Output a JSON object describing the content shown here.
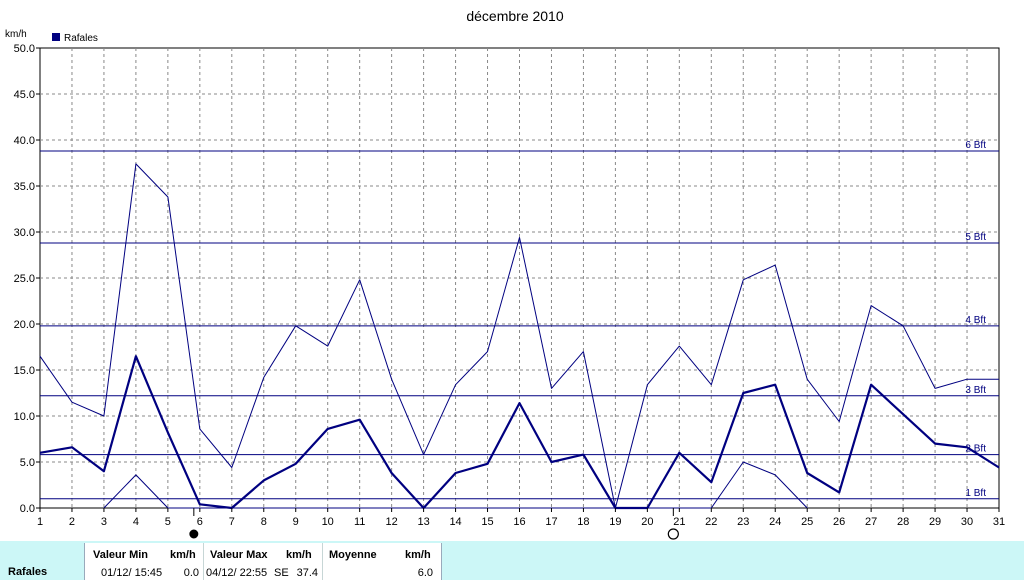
{
  "chart_data": {
    "type": "line",
    "title": "décembre 2010",
    "ylabel": "km/h",
    "xlabel": "",
    "xlim": [
      1,
      31
    ],
    "ylim": [
      0,
      50
    ],
    "y_ticks": [
      "0.0",
      "5.0",
      "10.0",
      "15.0",
      "20.0",
      "25.0",
      "30.0",
      "35.0",
      "40.0",
      "45.0",
      "50.0"
    ],
    "x_ticks": [
      "1",
      "2",
      "3",
      "4",
      "5",
      "6",
      "7",
      "8",
      "9",
      "10",
      "11",
      "12",
      "13",
      "14",
      "15",
      "16",
      "17",
      "18",
      "19",
      "20",
      "21",
      "22",
      "23",
      "24",
      "25",
      "26",
      "27",
      "28",
      "29",
      "30",
      "31"
    ],
    "grid": true,
    "legend": {
      "position": "top-left",
      "entries": [
        "Rafales"
      ]
    },
    "colors": {
      "series": "#000080",
      "grid": "#888888",
      "stats_bg": "#ccf7f7"
    },
    "series": [
      {
        "name": "Rafales",
        "role": "average",
        "x": [
          1,
          2,
          3,
          4,
          5,
          6,
          7,
          8,
          9,
          10,
          11,
          12,
          13,
          14,
          15,
          16,
          17,
          18,
          19,
          20,
          21,
          22,
          23,
          24,
          25,
          26,
          27,
          28,
          29,
          30,
          31
        ],
        "values": [
          6.0,
          6.6,
          4.0,
          16.5,
          8.2,
          0.4,
          0.0,
          3.0,
          4.8,
          8.6,
          9.6,
          3.8,
          0.0,
          3.8,
          4.8,
          11.4,
          5.0,
          5.8,
          0.0,
          0.0,
          6.0,
          2.8,
          12.5,
          13.4,
          3.8,
          1.7,
          13.4,
          10.2,
          7.0,
          6.6,
          4.4
        ]
      },
      {
        "role": "max",
        "x": [
          1,
          2,
          3,
          4,
          5,
          6,
          7,
          8,
          9,
          10,
          11,
          12,
          13,
          14,
          15,
          16,
          17,
          18,
          19,
          20,
          21,
          22,
          23,
          24,
          25,
          26,
          27,
          28,
          29,
          30,
          31
        ],
        "values": [
          16.5,
          11.5,
          10.0,
          37.4,
          33.8,
          8.6,
          4.4,
          14.2,
          19.8,
          17.6,
          24.8,
          14.0,
          5.8,
          13.4,
          17.0,
          29.4,
          13.0,
          17.0,
          0.0,
          13.4,
          17.6,
          13.4,
          24.8,
          26.4,
          14.0,
          9.4,
          22.0,
          19.8,
          13.0,
          14.0,
          14.0
        ]
      },
      {
        "role": "min",
        "x": [
          3,
          4,
          5,
          22,
          23,
          24,
          25
        ],
        "values": [
          0.0,
          3.6,
          0.0,
          0.0,
          5.0,
          3.6,
          0.0
        ]
      }
    ],
    "reference_lines": [
      {
        "label": "1 Bft",
        "value": 1.0
      },
      {
        "label": "2 Bft",
        "value": 5.8
      },
      {
        "label": "3 Bft",
        "value": 12.2
      },
      {
        "label": "4 Bft",
        "value": 19.8
      },
      {
        "label": "5 Bft",
        "value": 28.8
      },
      {
        "label": "6 Bft",
        "value": 38.8
      }
    ],
    "moon_phases": [
      {
        "day": 6,
        "phase": "new-moon"
      },
      {
        "day": 21,
        "phase": "full-moon"
      }
    ]
  },
  "stats": {
    "series_label": "Rafales",
    "min_header": "Valeur Min",
    "min_unit": "km/h",
    "min_when": "01/12/  15:45",
    "min_value": "0.0",
    "max_header": "Valeur Max",
    "max_unit": "km/h",
    "max_when": "04/12/  22:55",
    "max_dir": "SE",
    "max_value": "37.4",
    "avg_header": "Moyenne",
    "avg_unit": "km/h",
    "avg_value": "6.0"
  }
}
